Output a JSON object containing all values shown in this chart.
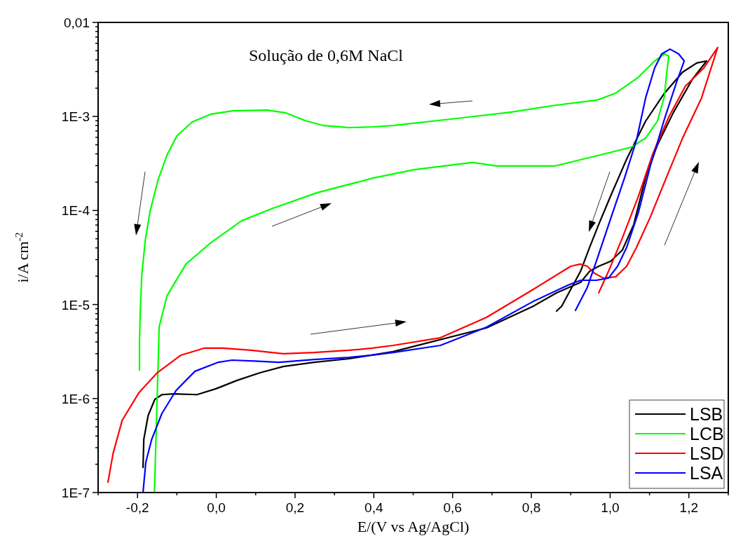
{
  "chart_data": {
    "type": "line",
    "xlabel": "E/(V vs Ag/AgCl)",
    "ylabel": "i/A cm$^{-2}$",
    "annotations": [
      "Solução de 0,6M NaCl"
    ],
    "log": "y",
    "xlim": [
      -0.3,
      1.3
    ],
    "ylim": [
      1e-07,
      0.01
    ],
    "xticks": [
      {
        "value": -0.3,
        "label": null
      },
      {
        "value": -0.2,
        "label": "-0,2"
      },
      {
        "value": -0.1,
        "label": null
      },
      {
        "value": 0,
        "label": "0,0"
      },
      {
        "value": 0.1,
        "label": null
      },
      {
        "value": 0.2,
        "label": "0,2"
      },
      {
        "value": 0.3,
        "label": null
      },
      {
        "value": 0.4,
        "label": "0,4"
      },
      {
        "value": 0.5,
        "label": null
      },
      {
        "value": 0.6,
        "label": "0,6"
      },
      {
        "value": 0.7,
        "label": null
      },
      {
        "value": 0.8,
        "label": "0,8"
      },
      {
        "value": 0.9,
        "label": null
      },
      {
        "value": 1.0,
        "label": "1,0"
      },
      {
        "value": 1.1,
        "label": null
      },
      {
        "value": 1.2,
        "label": "1,2"
      },
      {
        "value": 1.3,
        "label": null
      }
    ],
    "yticks": [
      {
        "value": 1e-07,
        "label": "1E-7"
      },
      {
        "value": 2e-07,
        "label": null
      },
      {
        "value": 3e-07,
        "label": null
      },
      {
        "value": 4e-07,
        "label": null
      },
      {
        "value": 5e-07,
        "label": null
      },
      {
        "value": 6e-07,
        "label": null
      },
      {
        "value": 7e-07,
        "label": null
      },
      {
        "value": 8e-07,
        "label": null
      },
      {
        "value": 9e-07,
        "label": null
      },
      {
        "value": 1e-06,
        "label": "1E-6"
      },
      {
        "value": 2e-06,
        "label": null
      },
      {
        "value": 3e-06,
        "label": null
      },
      {
        "value": 4e-06,
        "label": null
      },
      {
        "value": 5e-06,
        "label": null
      },
      {
        "value": 6e-06,
        "label": null
      },
      {
        "value": 7e-06,
        "label": null
      },
      {
        "value": 8e-06,
        "label": null
      },
      {
        "value": 9e-06,
        "label": null
      },
      {
        "value": 1e-05,
        "label": "1E-5"
      },
      {
        "value": 2e-05,
        "label": null
      },
      {
        "value": 3e-05,
        "label": null
      },
      {
        "value": 4e-05,
        "label": null
      },
      {
        "value": 5e-05,
        "label": null
      },
      {
        "value": 6e-05,
        "label": null
      },
      {
        "value": 7e-05,
        "label": null
      },
      {
        "value": 8e-05,
        "label": null
      },
      {
        "value": 9e-05,
        "label": null
      },
      {
        "value": 0.0001,
        "label": "1E-4"
      },
      {
        "value": 0.0002,
        "label": null
      },
      {
        "value": 0.0003,
        "label": null
      },
      {
        "value": 0.0004,
        "label": null
      },
      {
        "value": 0.0005,
        "label": null
      },
      {
        "value": 0.0006,
        "label": null
      },
      {
        "value": 0.0007,
        "label": null
      },
      {
        "value": 0.0008,
        "label": null
      },
      {
        "value": 0.0009,
        "label": null
      },
      {
        "value": 0.001,
        "label": "1E-3"
      },
      {
        "value": 0.002,
        "label": null
      },
      {
        "value": 0.003,
        "label": null
      },
      {
        "value": 0.004,
        "label": null
      },
      {
        "value": 0.005,
        "label": null
      },
      {
        "value": 0.006,
        "label": null
      },
      {
        "value": 0.007,
        "label": null
      },
      {
        "value": 0.008,
        "label": null
      },
      {
        "value": 0.009,
        "label": null
      },
      {
        "value": 0.01,
        "label": "0,01"
      }
    ],
    "grid": false,
    "legend": "bottom right",
    "series": [
      {
        "name": "LSB",
        "color": "#000000",
        "x": [
          -0.186,
          -0.184,
          -0.173,
          -0.156,
          -0.138,
          -0.107,
          -0.049,
          -0.001,
          0.053,
          0.111,
          0.17,
          0.248,
          0.337,
          0.449,
          0.686,
          0.805,
          0.864,
          0.925,
          0.948,
          0.971,
          1.001,
          1.031,
          1.06,
          1.09,
          1.12,
          1.161,
          1.209,
          1.245,
          1.22,
          1.184,
          1.138,
          1.09,
          1.042,
          1.001,
          0.971,
          0.948,
          0.925,
          0.9,
          0.877,
          0.864
        ],
        "values": [
          1.85e-07,
          3.68e-07,
          6.6e-07,
          9.8e-07,
          1.1e-06,
          1.12e-06,
          1.1e-06,
          1.27e-06,
          1.56e-06,
          1.88e-06,
          2.19e-06,
          2.43e-06,
          2.65e-06,
          3.15e-06,
          5.64e-06,
          9.6e-06,
          1.33e-05,
          1.72e-05,
          2.26e-05,
          2.55e-05,
          2.88e-05,
          3.79e-05,
          7.1e-05,
          0.000225,
          0.000497,
          0.00111,
          0.00249,
          0.00389,
          0.0037,
          0.00296,
          0.00177,
          0.00089,
          0.000352,
          0.000142,
          7.1e-05,
          4.06e-05,
          2.26e-05,
          1.45e-05,
          9.6e-06,
          8.5e-06
        ]
      },
      {
        "name": "LCB",
        "color": "#00ff00",
        "x": [
          -0.157,
          -0.145,
          -0.125,
          -0.077,
          -0.013,
          0.065,
          0.145,
          0.257,
          0.4,
          0.503,
          0.651,
          0.711,
          0.859,
          0.983,
          1.054,
          1.09,
          1.12,
          1.138,
          1.143,
          1.149,
          1.138,
          1.113,
          1.072,
          1.014,
          0.966,
          0.864,
          0.747,
          0.627,
          0.449,
          0.4,
          0.336,
          0.272,
          0.225,
          0.177,
          0.129,
          0.042,
          -0.013,
          -0.061,
          -0.1,
          -0.125,
          -0.148,
          -0.168,
          -0.18,
          -0.189,
          -0.193,
          -0.195,
          -0.195
        ],
        "values": [
          1e-07,
          5.8e-06,
          1.24e-05,
          2.69e-05,
          4.57e-05,
          7.8e-05,
          0.000106,
          0.000155,
          0.000222,
          0.000272,
          0.000324,
          0.000297,
          0.000297,
          0.000397,
          0.000472,
          0.000589,
          0.00089,
          0.00165,
          0.00276,
          0.00439,
          0.00462,
          0.00389,
          0.00262,
          0.00177,
          0.00149,
          0.00132,
          0.00111,
          0.00097,
          0.0008,
          0.000776,
          0.00076,
          0.0008,
          0.000906,
          0.00109,
          0.00117,
          0.00115,
          0.00106,
          0.000875,
          0.00062,
          0.00039,
          0.00021,
          9.9e-05,
          4.9e-05,
          2.11e-05,
          8.5e-06,
          3.9e-06,
          2e-06
        ]
      },
      {
        "name": "LSD",
        "color": "#ff0000",
        "x": [
          -0.275,
          -0.262,
          -0.239,
          -0.196,
          -0.15,
          -0.09,
          -0.031,
          0.017,
          0.088,
          0.17,
          0.248,
          0.337,
          0.396,
          0.449,
          0.569,
          0.686,
          0.805,
          0.9,
          0.925,
          0.942,
          0.96,
          0.983,
          1.014,
          1.042,
          1.067,
          1.102,
          1.143,
          1.184,
          1.232,
          1.273,
          1.238,
          1.191,
          1.149,
          1.108,
          1.072,
          1.031,
          0.996,
          0.971
        ],
        "values": [
          1.29e-07,
          2.61e-07,
          5.86e-07,
          1.16e-06,
          1.88e-06,
          2.89e-06,
          3.43e-06,
          3.43e-06,
          3.26e-06,
          2.99e-06,
          3.09e-06,
          3.26e-06,
          3.43e-06,
          3.67e-06,
          4.43e-06,
          7.3e-06,
          1.45e-05,
          2.55e-05,
          2.69e-05,
          2.55e-05,
          2.15e-05,
          1.91e-05,
          1.97e-05,
          2.55e-05,
          4.06e-05,
          8.5e-05,
          0.000225,
          0.000589,
          0.00157,
          0.0054,
          0.00328,
          0.0021,
          0.00099,
          0.000397,
          0.000142,
          5.1e-05,
          2.26e-05,
          1.33e-05
        ]
      },
      {
        "name": "LSA",
        "color": "#0000ff",
        "x": [
          -0.186,
          -0.179,
          -0.164,
          -0.138,
          -0.102,
          -0.054,
          0.005,
          0.04,
          0.099,
          0.159,
          0.248,
          0.337,
          0.396,
          0.449,
          0.569,
          0.686,
          0.805,
          0.894,
          0.925,
          0.965,
          0.996,
          1.019,
          1.042,
          1.072,
          1.102,
          1.138,
          1.167,
          1.188,
          1.174,
          1.152,
          1.131,
          1.113,
          1.09,
          1.067,
          1.037,
          1.001,
          0.965,
          0.942,
          0.912
        ],
        "values": [
          1e-07,
          2.09e-07,
          3.68e-07,
          6.95e-07,
          1.22e-06,
          1.95e-06,
          2.43e-06,
          2.56e-06,
          2.5e-06,
          2.43e-06,
          2.6e-06,
          2.74e-06,
          2.89e-06,
          3.09e-06,
          3.67e-06,
          5.74e-06,
          1.08e-05,
          1.61e-05,
          1.81e-05,
          1.81e-05,
          1.91e-05,
          2.55e-05,
          4.06e-05,
          9.6e-05,
          0.000297,
          0.00094,
          0.00221,
          0.00389,
          0.00462,
          0.0052,
          0.00462,
          0.00328,
          0.00157,
          0.00056,
          0.000225,
          8.1e-05,
          2.88e-05,
          1.52e-05,
          8.65e-06
        ]
      }
    ]
  }
}
